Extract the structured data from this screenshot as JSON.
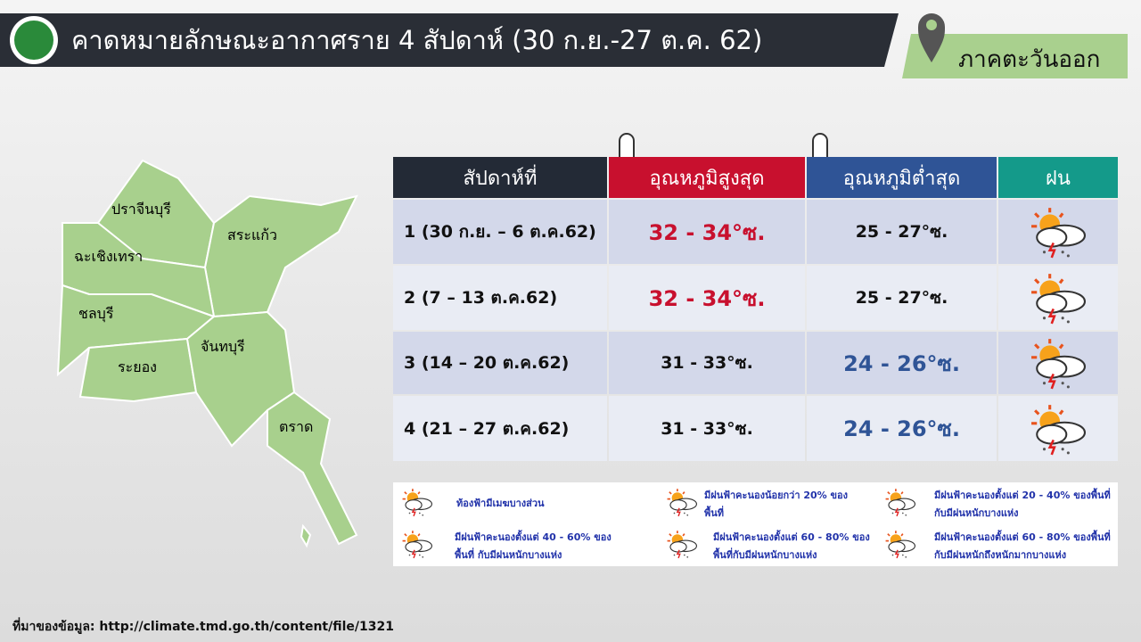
{
  "header": {
    "title": "คาดหมายลักษณะอากาศราย 4 สัปดาห์ (30 ก.ย.-27 ต.ค. 62)",
    "region": "ภาคตะวันออก"
  },
  "map": {
    "provinces": [
      "ปราจีนบุรี",
      "สระแก้ว",
      "ฉะเชิงเทรา",
      "ชลบุรี",
      "ระยอง",
      "จันทบุรี",
      "ตราด"
    ]
  },
  "table": {
    "headers": [
      "สัปดาห์ที่",
      "อุณหภูมิสูงสุด",
      "อุณหภูมิต่ำสุด",
      "ฝน"
    ],
    "rows": [
      {
        "week": "1 (30 ก.ย. – 6 ต.ค.62)",
        "max": "32 - 34°ซ.",
        "min": "25 - 27°ซ.",
        "max_emphasis": true,
        "min_emphasis": false
      },
      {
        "week": "2 (7 – 13 ต.ค.62)",
        "max": "32 - 34°ซ.",
        "min": "25 - 27°ซ.",
        "max_emphasis": true,
        "min_emphasis": false
      },
      {
        "week": "3 (14 – 20 ต.ค.62)",
        "max": "31 - 33°ซ.",
        "min": "24 - 26°ซ.",
        "max_emphasis": false,
        "min_emphasis": true
      },
      {
        "week": "4 (21 – 27 ต.ค.62)",
        "max": "31 - 33°ซ.",
        "min": "24 - 26°ซ.",
        "max_emphasis": false,
        "min_emphasis": true
      }
    ]
  },
  "legend": [
    "ท้องฟ้ามีเมฆบางส่วน",
    "มีฝนฟ้าคะนองน้อยกว่า 20% ของพื้นที่",
    "มีฝนฟ้าคะนองตั้งแต่ 20 - 40% ของพื้นที่ กับมีฝนหนักบางแห่ง",
    "มีฝนฟ้าคะนองตั้งแต่ 40 - 60% ของพื้นที่ กับมีฝนหนักบางแห่ง",
    "มีฝนฟ้าคะนองตั้งแต่ 60 - 80% ของพื้นที่กับมีฝนหนักบางแห่ง",
    "มีฝนฟ้าคะนองตั้งแต่ 60 - 80% ของพื้นที่ กับมีฝนหนักถึงหนักมากบางแห่ง"
  ],
  "source": "ที่มาของข้อมูล: http://climate.tmd.go.th/content/file/1321"
}
